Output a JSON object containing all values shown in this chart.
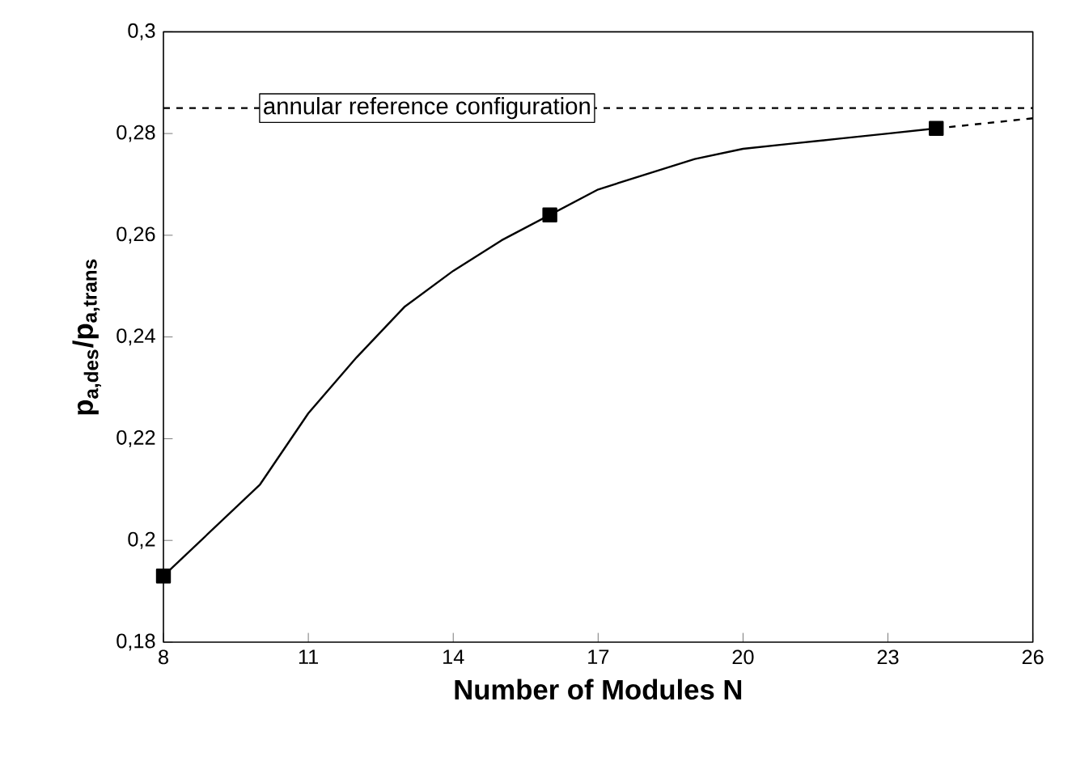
{
  "chart_data": {
    "type": "line",
    "xlabel": "Number of Modules  N",
    "ylabel": "p$_{a,des}$/p$_{a,trans}$",
    "xlim": [
      8,
      26
    ],
    "xticks": [
      8,
      11,
      14,
      17,
      20,
      23,
      26
    ],
    "ylim": [
      0.18,
      0.3
    ],
    "yticks": [
      {
        "value": 0.18,
        "label": "0,18"
      },
      {
        "value": 0.2,
        "label": "0,2"
      },
      {
        "value": 0.22,
        "label": "0,22"
      },
      {
        "value": 0.24,
        "label": "0,24"
      },
      {
        "value": 0.26,
        "label": "0,26"
      },
      {
        "value": 0.28,
        "label": "0,28"
      },
      {
        "value": 0.3,
        "label": "0,3"
      }
    ],
    "grid": false,
    "ref_lines": [
      {
        "axis": "y",
        "value": 0.285,
        "label": "annular reference configuration",
        "line_style": "dashed"
      }
    ],
    "series": [
      {
        "color": "#000000",
        "line_style": "solid",
        "marker": "none",
        "x": [
          8,
          9,
          10,
          11,
          12,
          13,
          14,
          15,
          16,
          17,
          18,
          19,
          20,
          21,
          22,
          23,
          24
        ],
        "values": [
          0.193,
          0.202,
          0.211,
          0.225,
          0.236,
          0.246,
          0.253,
          0.259,
          0.264,
          0.269,
          0.272,
          0.275,
          0.277,
          0.278,
          0.279,
          0.28,
          0.281
        ]
      },
      {
        "color": "#000000",
        "line_style": "dashed",
        "marker": "none",
        "x": [
          24,
          25,
          26
        ],
        "values": [
          0.281,
          0.282,
          0.283
        ]
      },
      {
        "type": "scatter",
        "color": "#000000",
        "marker": "square",
        "x": [
          8,
          16,
          24
        ],
        "values": [
          0.193,
          0.264,
          0.281
        ]
      }
    ]
  }
}
